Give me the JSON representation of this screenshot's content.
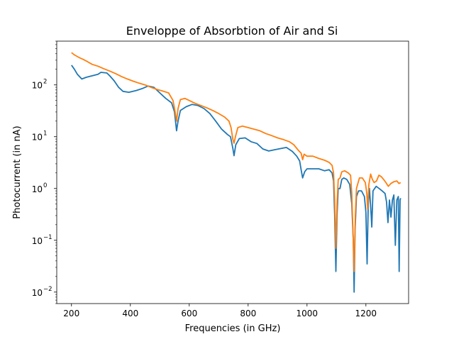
{
  "chart_data": {
    "type": "line",
    "title": "Enveloppe of Absorbtion of Air and Si",
    "xlabel": "Frequencies (in GHz)",
    "ylabel": "Photocurrent (in nA)",
    "xlim": [
      150,
      1345
    ],
    "ylim": [
      0.006,
      700
    ],
    "yscale": "log",
    "grid": false,
    "xticks": [
      200,
      400,
      600,
      800,
      1000,
      1200
    ],
    "xtick_labels": [
      "200",
      "400",
      "600",
      "800",
      "1000",
      "1200"
    ],
    "yticks": [
      0.01,
      0.1,
      1,
      10,
      100
    ],
    "ytick_labels": [
      {
        "base": "10",
        "exp": "−2"
      },
      {
        "base": "10",
        "exp": "−1"
      },
      {
        "base": "10",
        "exp": "0"
      },
      {
        "base": "10",
        "exp": "1"
      },
      {
        "base": "10",
        "exp": "2"
      }
    ],
    "series": [
      {
        "color": "#1f77b4",
        "points": [
          [
            200,
            240
          ],
          [
            210,
            200
          ],
          [
            220,
            160
          ],
          [
            235,
            130
          ],
          [
            250,
            140
          ],
          [
            270,
            150
          ],
          [
            290,
            160
          ],
          [
            300,
            175
          ],
          [
            320,
            170
          ],
          [
            330,
            150
          ],
          [
            345,
            120
          ],
          [
            360,
            90
          ],
          [
            375,
            75
          ],
          [
            395,
            72
          ],
          [
            420,
            78
          ],
          [
            440,
            85
          ],
          [
            460,
            95
          ],
          [
            480,
            90
          ],
          [
            500,
            70
          ],
          [
            520,
            55
          ],
          [
            540,
            45
          ],
          [
            550,
            30
          ],
          [
            557,
            13
          ],
          [
            562,
            20
          ],
          [
            570,
            32
          ],
          [
            590,
            38
          ],
          [
            610,
            42
          ],
          [
            630,
            40
          ],
          [
            650,
            35
          ],
          [
            670,
            28
          ],
          [
            690,
            20
          ],
          [
            710,
            14
          ],
          [
            730,
            11
          ],
          [
            740,
            10
          ],
          [
            748,
            6
          ],
          [
            752,
            4.3
          ],
          [
            758,
            7
          ],
          [
            770,
            9.2
          ],
          [
            790,
            9.5
          ],
          [
            810,
            8
          ],
          [
            830,
            7.4
          ],
          [
            850,
            5.8
          ],
          [
            870,
            5.3
          ],
          [
            890,
            5.6
          ],
          [
            910,
            5.9
          ],
          [
            930,
            6.2
          ],
          [
            950,
            5.2
          ],
          [
            965,
            4.2
          ],
          [
            975,
            3.4
          ],
          [
            980,
            2.3
          ],
          [
            985,
            1.6
          ],
          [
            992,
            2.1
          ],
          [
            1000,
            2.4
          ],
          [
            1020,
            2.4
          ],
          [
            1040,
            2.4
          ],
          [
            1060,
            2.2
          ],
          [
            1075,
            2.3
          ],
          [
            1085,
            2.0
          ],
          [
            1090,
            1.4
          ],
          [
            1094,
            0.3
          ],
          [
            1098,
            0.025
          ],
          [
            1102,
            0.3
          ],
          [
            1106,
            1.0
          ],
          [
            1112,
            1.0
          ],
          [
            1118,
            1.5
          ],
          [
            1125,
            1.6
          ],
          [
            1135,
            1.5
          ],
          [
            1145,
            1.2
          ],
          [
            1152,
            0.5
          ],
          [
            1157,
            0.1
          ],
          [
            1160,
            0.01
          ],
          [
            1163,
            0.15
          ],
          [
            1168,
            0.7
          ],
          [
            1175,
            0.9
          ],
          [
            1185,
            0.9
          ],
          [
            1195,
            0.7
          ],
          [
            1200,
            0.35
          ],
          [
            1204,
            0.035
          ],
          [
            1208,
            0.5
          ],
          [
            1212,
            1.0
          ],
          [
            1218,
            0.3
          ],
          [
            1220,
            0.18
          ],
          [
            1224,
            0.9
          ],
          [
            1235,
            1.1
          ],
          [
            1245,
            1.0
          ],
          [
            1255,
            0.9
          ],
          [
            1265,
            0.8
          ],
          [
            1270,
            0.55
          ],
          [
            1275,
            0.22
          ],
          [
            1280,
            0.6
          ],
          [
            1285,
            0.28
          ],
          [
            1290,
            0.6
          ],
          [
            1295,
            0.75
          ],
          [
            1300,
            0.08
          ],
          [
            1305,
            0.6
          ],
          [
            1310,
            0.7
          ],
          [
            1313,
            0.025
          ],
          [
            1316,
            0.6
          ],
          [
            1318,
            0.65
          ]
        ]
      },
      {
        "color": "#ff7f0e",
        "points": [
          [
            200,
            420
          ],
          [
            210,
            380
          ],
          [
            225,
            340
          ],
          [
            240,
            310
          ],
          [
            255,
            280
          ],
          [
            270,
            250
          ],
          [
            290,
            230
          ],
          [
            310,
            205
          ],
          [
            330,
            185
          ],
          [
            350,
            165
          ],
          [
            370,
            145
          ],
          [
            390,
            130
          ],
          [
            410,
            118
          ],
          [
            430,
            108
          ],
          [
            450,
            100
          ],
          [
            470,
            90
          ],
          [
            490,
            82
          ],
          [
            510,
            76
          ],
          [
            530,
            70
          ],
          [
            545,
            50
          ],
          [
            552,
            30
          ],
          [
            557,
            20
          ],
          [
            562,
            35
          ],
          [
            570,
            52
          ],
          [
            585,
            55
          ],
          [
            600,
            50
          ],
          [
            620,
            44
          ],
          [
            640,
            40
          ],
          [
            660,
            36
          ],
          [
            680,
            32
          ],
          [
            700,
            28
          ],
          [
            720,
            24
          ],
          [
            735,
            20
          ],
          [
            742,
            15
          ],
          [
            748,
            9
          ],
          [
            752,
            7.5
          ],
          [
            757,
            10
          ],
          [
            765,
            15
          ],
          [
            780,
            16
          ],
          [
            800,
            15
          ],
          [
            820,
            14
          ],
          [
            840,
            13
          ],
          [
            860,
            11.5
          ],
          [
            880,
            10.5
          ],
          [
            900,
            9.5
          ],
          [
            920,
            8.8
          ],
          [
            940,
            8
          ],
          [
            955,
            7
          ],
          [
            970,
            5.5
          ],
          [
            980,
            4.8
          ],
          [
            985,
            3.6
          ],
          [
            990,
            4.6
          ],
          [
            1000,
            4.2
          ],
          [
            1020,
            4.2
          ],
          [
            1040,
            3.8
          ],
          [
            1060,
            3.5
          ],
          [
            1075,
            3.2
          ],
          [
            1085,
            2.8
          ],
          [
            1090,
            2.0
          ],
          [
            1094,
            0.6
          ],
          [
            1098,
            0.07
          ],
          [
            1102,
            0.5
          ],
          [
            1106,
            1.5
          ],
          [
            1112,
            1.6
          ],
          [
            1118,
            2.1
          ],
          [
            1128,
            2.2
          ],
          [
            1140,
            2.0
          ],
          [
            1148,
            1.8
          ],
          [
            1152,
            0.8
          ],
          [
            1156,
            0.15
          ],
          [
            1160,
            0.025
          ],
          [
            1164,
            0.3
          ],
          [
            1168,
            1.0
          ],
          [
            1178,
            1.6
          ],
          [
            1188,
            1.6
          ],
          [
            1198,
            1.3
          ],
          [
            1203,
            0.8
          ],
          [
            1206,
            0.4
          ],
          [
            1210,
            1.2
          ],
          [
            1216,
            1.9
          ],
          [
            1222,
            1.5
          ],
          [
            1228,
            1.3
          ],
          [
            1236,
            1.4
          ],
          [
            1244,
            1.8
          ],
          [
            1252,
            1.7
          ],
          [
            1260,
            1.5
          ],
          [
            1268,
            1.3
          ],
          [
            1276,
            1.1
          ],
          [
            1285,
            1.25
          ],
          [
            1295,
            1.35
          ],
          [
            1305,
            1.4
          ],
          [
            1312,
            1.25
          ],
          [
            1318,
            1.3
          ]
        ]
      }
    ]
  }
}
